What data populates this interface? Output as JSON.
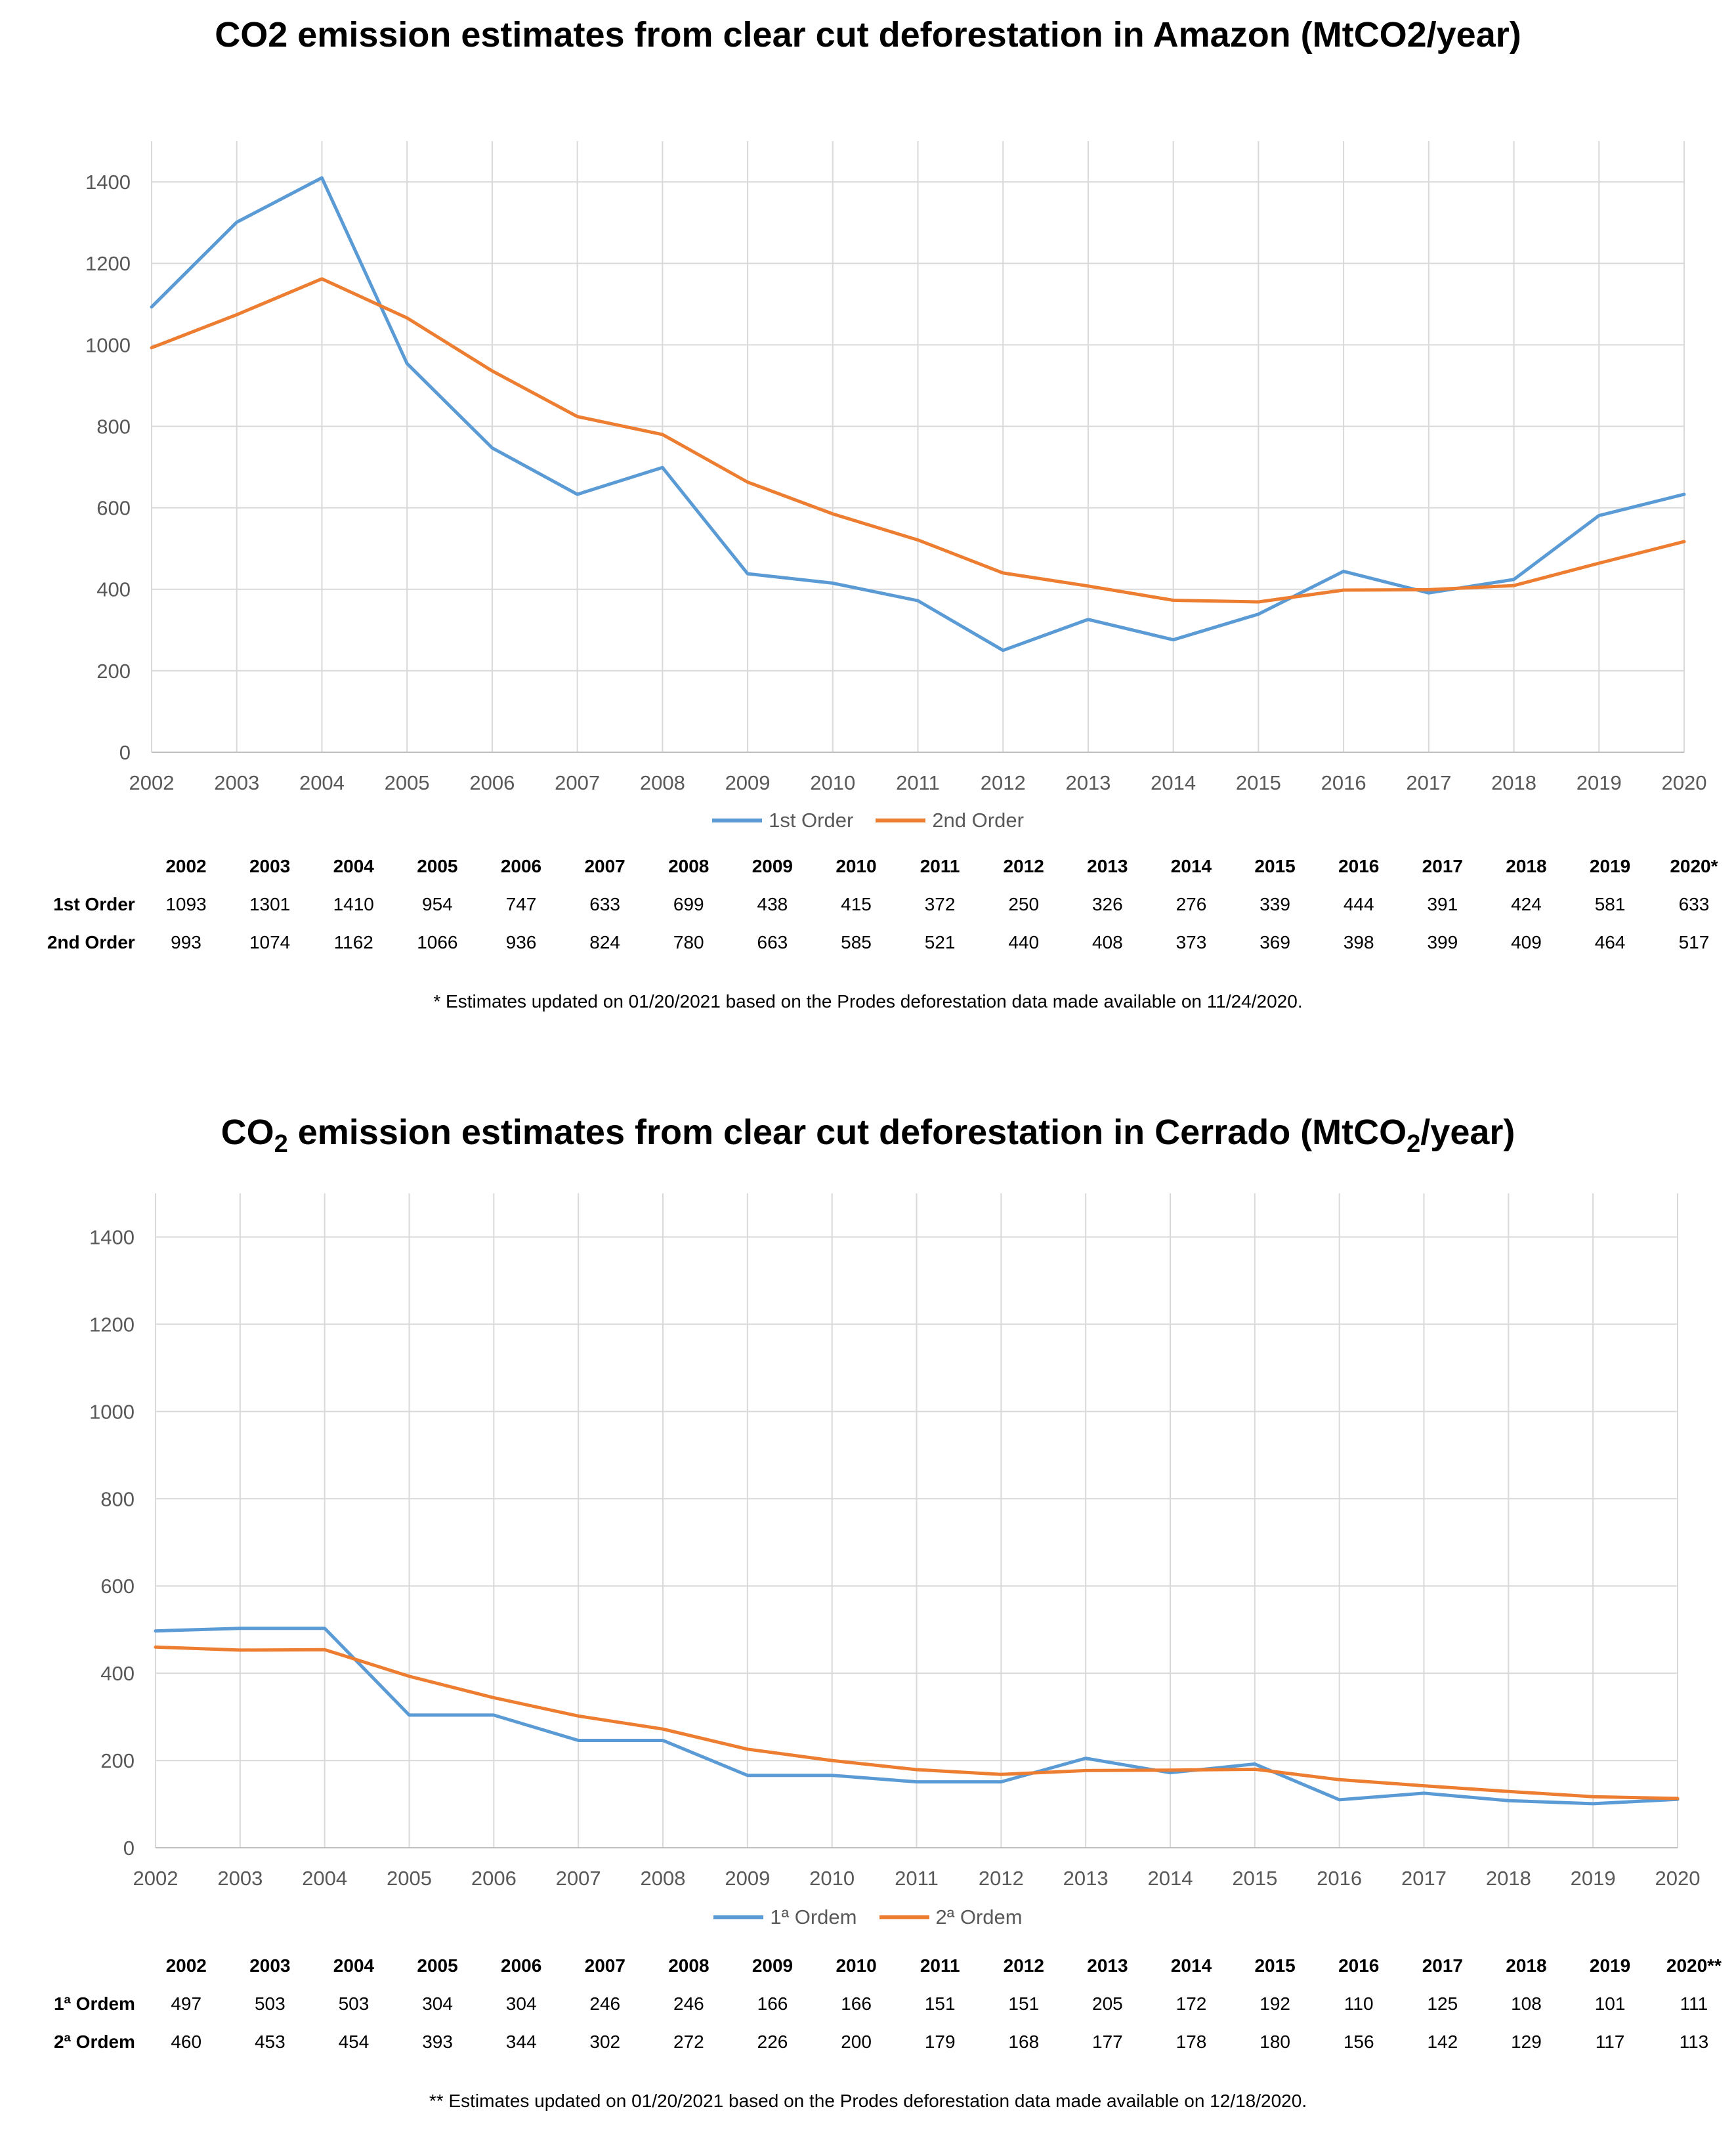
{
  "chart_data": [
    {
      "type": "line",
      "title": "CO2 emission estimates from clear cut deforestation in Amazon (MtCO2/year)",
      "x": [
        "2002",
        "2003",
        "2004",
        "2005",
        "2006",
        "2007",
        "2008",
        "2009",
        "2010",
        "2011",
        "2012",
        "2013",
        "2014",
        "2015",
        "2016",
        "2017",
        "2018",
        "2019",
        "2020"
      ],
      "ylim": [
        0,
        1500
      ],
      "yticks": [
        "0",
        "200",
        "400",
        "600",
        "800",
        "1000",
        "1200",
        "1400"
      ],
      "grid": true,
      "legend_position": "bottom",
      "series": [
        {
          "name": "1st Order",
          "color": "#5b9bd5",
          "values": [
            1093,
            1301,
            1410,
            954,
            747,
            633,
            699,
            438,
            415,
            372,
            250,
            326,
            276,
            339,
            444,
            391,
            424,
            581,
            633
          ]
        },
        {
          "name": "2nd Order",
          "color": "#ed7d31",
          "values": [
            993,
            1074,
            1162,
            1066,
            936,
            824,
            780,
            663,
            585,
            521,
            440,
            408,
            373,
            369,
            398,
            399,
            409,
            464,
            517
          ]
        }
      ],
      "table": {
        "headers": [
          "2002",
          "2003",
          "2004",
          "2005",
          "2006",
          "2007",
          "2008",
          "2009",
          "2010",
          "2011",
          "2012",
          "2013",
          "2014",
          "2015",
          "2016",
          "2017",
          "2018",
          "2019",
          "2020*"
        ],
        "rows": [
          {
            "label": "1st Order",
            "values": [
              "1093",
              "1301",
              "1410",
              "954",
              "747",
              "633",
              "699",
              "438",
              "415",
              "372",
              "250",
              "326",
              "276",
              "339",
              "444",
              "391",
              "424",
              "581",
              "633"
            ]
          },
          {
            "label": "2nd Order",
            "values": [
              "993",
              "1074",
              "1162",
              "1066",
              "936",
              "824",
              "780",
              "663",
              "585",
              "521",
              "440",
              "408",
              "373",
              "369",
              "398",
              "399",
              "409",
              "464",
              "517"
            ]
          }
        ]
      },
      "note": "* Estimates updated on 01/20/2021 based on the Prodes deforestation data made available on 11/24/2020."
    },
    {
      "type": "line",
      "title": {
        "a": "CO",
        "b": "2",
        "c": " emission estimates from clear cut deforestation in Cerrado (MtCO",
        "d": "2",
        "e": "/year)"
      },
      "x": [
        "2002",
        "2003",
        "2004",
        "2005",
        "2006",
        "2007",
        "2008",
        "2009",
        "2010",
        "2011",
        "2012",
        "2013",
        "2014",
        "2015",
        "2016",
        "2017",
        "2018",
        "2019",
        "2020"
      ],
      "ylim": [
        0,
        1500
      ],
      "yticks": [
        "0",
        "200",
        "400",
        "600",
        "800",
        "1000",
        "1200",
        "1400"
      ],
      "grid": true,
      "legend_position": "bottom",
      "series": [
        {
          "name": "1ª Ordem",
          "color": "#5b9bd5",
          "values": [
            497,
            503,
            503,
            304,
            304,
            246,
            246,
            166,
            166,
            151,
            151,
            205,
            172,
            192,
            110,
            125,
            108,
            101,
            111
          ]
        },
        {
          "name": "2ª Ordem",
          "color": "#ed7d31",
          "values": [
            460,
            453,
            454,
            393,
            344,
            302,
            272,
            226,
            200,
            179,
            168,
            177,
            178,
            180,
            156,
            142,
            129,
            117,
            113
          ]
        }
      ],
      "table": {
        "headers": [
          "2002",
          "2003",
          "2004",
          "2005",
          "2006",
          "2007",
          "2008",
          "2009",
          "2010",
          "2011",
          "2012",
          "2013",
          "2014",
          "2015",
          "2016",
          "2017",
          "2018",
          "2019",
          "2020**"
        ],
        "rows": [
          {
            "label": "1ª Ordem",
            "values": [
              "497",
              "503",
              "503",
              "304",
              "304",
              "246",
              "246",
              "166",
              "166",
              "151",
              "151",
              "205",
              "172",
              "192",
              "110",
              "125",
              "108",
              "101",
              "111"
            ]
          },
          {
            "label": "2ª Ordem",
            "values": [
              "460",
              "453",
              "454",
              "393",
              "344",
              "302",
              "272",
              "226",
              "200",
              "179",
              "168",
              "177",
              "178",
              "180",
              "156",
              "142",
              "129",
              "117",
              "113"
            ]
          }
        ]
      },
      "note": "** Estimates updated on 01/20/2021 based on the Prodes deforestation data made available on 12/18/2020."
    }
  ]
}
